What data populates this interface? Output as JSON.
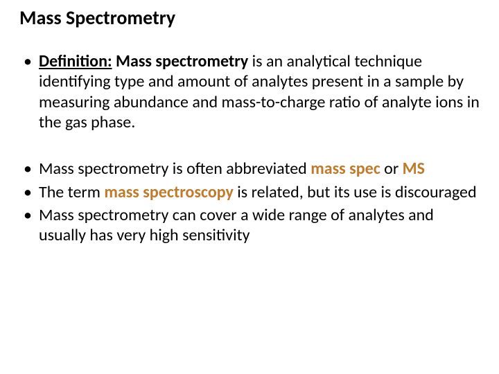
{
  "slide": {
    "title": "Mass Spectrometry",
    "title_fontsize": 28,
    "title_color": "#000000",
    "accent_color": "#bf7a2a",
    "body_fontsize": 24,
    "background_color": "#ffffff",
    "bullets_group1": [
      {
        "lead_label": "Definition:",
        "lead_term": "Mass spectrometry",
        "rest": " is an analytical technique identifying type and amount of analytes present in a sample by measuring abundance and mass-to-charge ratio of analyte ions in the gas phase."
      }
    ],
    "bullets_group2": [
      {
        "pre": "Mass spectrometry is often abbreviated ",
        "accent1": "mass spec",
        "mid": " or ",
        "accent2": "MS",
        "post": ""
      },
      {
        "pre": "The term ",
        "accent1": "mass spectroscopy",
        "mid": " is related, but its use is discouraged",
        "accent2": "",
        "post": ""
      },
      {
        "pre": "Mass spectrometry can cover a wide range of analytes and usually has very high sensitivity",
        "accent1": "",
        "mid": "",
        "accent2": "",
        "post": ""
      }
    ]
  }
}
